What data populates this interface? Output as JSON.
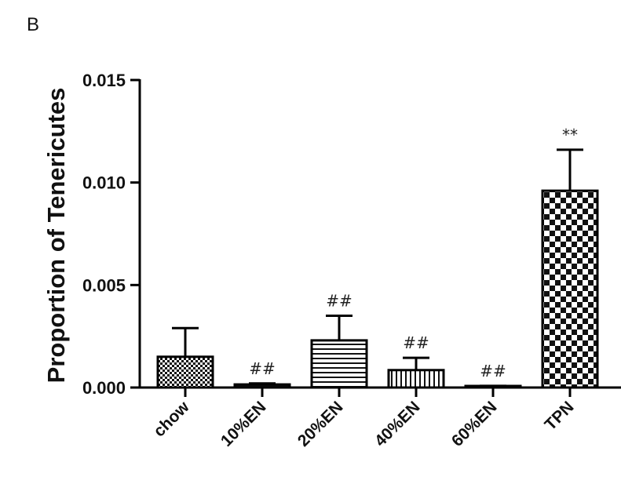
{
  "panel_label": "B",
  "chart_data": {
    "type": "bar",
    "title": "",
    "xlabel": "",
    "ylabel": "Proportion of Tenericutes",
    "ylim": [
      0,
      0.015
    ],
    "yticks": [
      "0.000",
      "0.005",
      "0.010",
      "0.015"
    ],
    "grid": false,
    "legend": "none",
    "categories": [
      "chow",
      "10%EN",
      "20%EN",
      "40%EN",
      "60%EN",
      "TPN"
    ],
    "values": [
      0.0015,
      0.00015,
      0.0023,
      0.00085,
      5e-05,
      0.0096
    ],
    "errors": [
      0.0014,
      5e-05,
      0.0012,
      0.0006,
      3e-05,
      0.002
    ],
    "annotations": [
      "",
      "##",
      "##",
      "##",
      "##",
      "**"
    ],
    "patterns": [
      "dense-checker",
      "solid-black",
      "horizontal-lines",
      "vertical-lines",
      "solid-black",
      "checker"
    ],
    "colors": {
      "bar": "#000000",
      "background": "#ffffff"
    }
  }
}
